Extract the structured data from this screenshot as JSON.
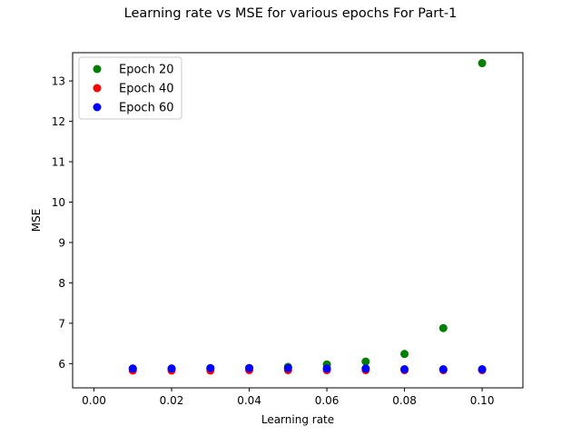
{
  "chart_data": {
    "type": "scatter",
    "title": "Learning rate vs MSE for various epochs For Part-1",
    "xlabel": "Learning rate",
    "ylabel": "MSE",
    "xlim": [
      -0.0055,
      0.1105
    ],
    "ylim": [
      5.4,
      13.7
    ],
    "xticks": [
      0.0,
      0.02,
      0.04,
      0.06,
      0.08,
      0.1
    ],
    "xtick_labels": [
      "0.00",
      "0.02",
      "0.04",
      "0.06",
      "0.08",
      "0.10"
    ],
    "yticks": [
      6,
      7,
      8,
      9,
      10,
      11,
      12,
      13
    ],
    "ytick_labels": [
      "6",
      "7",
      "8",
      "9",
      "10",
      "11",
      "12",
      "13"
    ],
    "grid": false,
    "legend_position": "top-left",
    "x": [
      0.01,
      0.02,
      0.03,
      0.04,
      0.05,
      0.06,
      0.07,
      0.08,
      0.09,
      0.1
    ],
    "series": [
      {
        "name": "Epoch 20",
        "color": "#008000",
        "values": [
          5.87,
          5.87,
          5.88,
          5.89,
          5.92,
          5.98,
          6.05,
          6.24,
          6.88,
          13.44
        ]
      },
      {
        "name": "Epoch 40",
        "color": "#ff0000",
        "values": [
          5.83,
          5.83,
          5.83,
          5.84,
          5.84,
          5.84,
          5.84,
          5.84,
          5.84,
          5.84
        ]
      },
      {
        "name": "Epoch 60",
        "color": "#0000ff",
        "values": [
          5.88,
          5.88,
          5.89,
          5.89,
          5.89,
          5.88,
          5.88,
          5.86,
          5.86,
          5.86
        ]
      }
    ]
  }
}
